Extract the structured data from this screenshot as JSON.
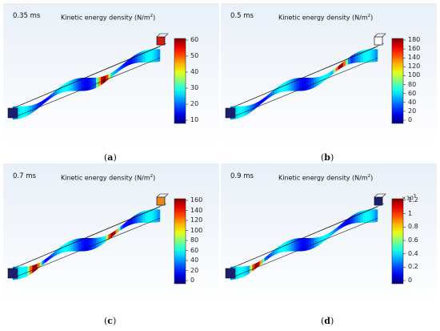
{
  "panels": [
    {
      "id": "a",
      "time": "0.35 ms",
      "title": "Kinetic energy density (N/m",
      "title_sup": "2",
      "title_end": ")",
      "caption": "a",
      "ticks": [
        "60",
        "50",
        "40",
        "30",
        "20",
        "10"
      ],
      "multiplier": "",
      "hotspots": [
        0.62
      ],
      "box_color": "#d21a12"
    },
    {
      "id": "b",
      "time": "0.5 ms",
      "title": "Kinetic energy density (N/m",
      "title_sup": "2",
      "title_end": ")",
      "caption": "b",
      "ticks": [
        "180",
        "160",
        "140",
        "120",
        "100",
        "80",
        "60",
        "40",
        "20",
        "0"
      ],
      "multiplier": "",
      "hotspots": [
        0.75
      ],
      "box_color": "#ffffff"
    },
    {
      "id": "c",
      "time": "0.7 ms",
      "title": "Kinetic energy density (N/m",
      "title_sup": "2",
      "title_end": ")",
      "caption": "c",
      "ticks": [
        "160",
        "140",
        "120",
        "100",
        "80",
        "60",
        "40",
        "20",
        "0"
      ],
      "multiplier": "",
      "hotspots": [
        0.15,
        0.68
      ],
      "box_color": "#e68a1e"
    },
    {
      "id": "d",
      "time": "0.9 ms",
      "title": "Kinetic energy density (N/m",
      "title_sup": "2",
      "title_end": ")",
      "caption": "d",
      "ticks": [
        "1.2",
        "1",
        "0.8",
        "0.6",
        "0.4",
        "0.2",
        "0"
      ],
      "multiplier": "×10",
      "multiplier_sup": "3",
      "hotspots": [
        0.18
      ],
      "box_color": "#1a1f6e"
    }
  ]
}
